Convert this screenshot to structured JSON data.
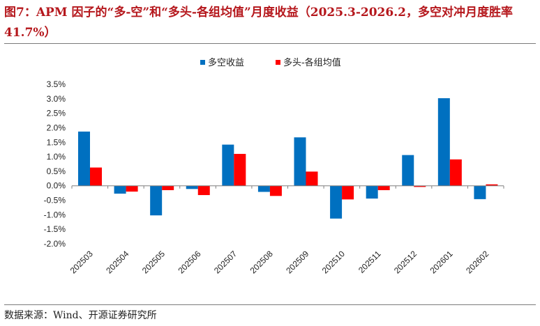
{
  "title": "图7：APM 因子的“多-空”和“多头-各组均值”月度收益（2025.3-2026.2，多空对冲月度胜率 41.7%）",
  "source": "数据来源：Wind、开源证券研究所",
  "chart_data": {
    "type": "bar",
    "categories": [
      "202503",
      "202504",
      "202505",
      "202506",
      "202507",
      "202508",
      "202509",
      "202510",
      "202511",
      "202512",
      "202601",
      "202602"
    ],
    "series": [
      {
        "name": "多空收益",
        "color": "#0070c0",
        "values": [
          1.87,
          -0.27,
          -1.02,
          -0.11,
          1.42,
          -0.21,
          1.67,
          -1.13,
          -0.44,
          1.06,
          3.02,
          -0.46
        ]
      },
      {
        "name": "多头-各组均值",
        "color": "#ff0000",
        "values": [
          0.63,
          -0.2,
          -0.15,
          -0.32,
          1.1,
          -0.35,
          0.49,
          -0.47,
          -0.15,
          -0.04,
          0.91,
          0.05
        ]
      }
    ],
    "ylim": [
      -2.0,
      3.5
    ],
    "yticks": [
      3.5,
      3.0,
      2.5,
      2.0,
      1.5,
      1.0,
      0.5,
      0.0,
      -0.5,
      -1.0,
      -1.5,
      -2.0
    ],
    "ytick_labels": [
      "3.5%",
      "3.0%",
      "2.5%",
      "2.0%",
      "1.5%",
      "1.0%",
      "0.5%",
      "0.0%",
      "-0.5%",
      "-1.0%",
      "-1.5%",
      "-2.0%"
    ],
    "legend_position": "top-center",
    "grid": false
  }
}
